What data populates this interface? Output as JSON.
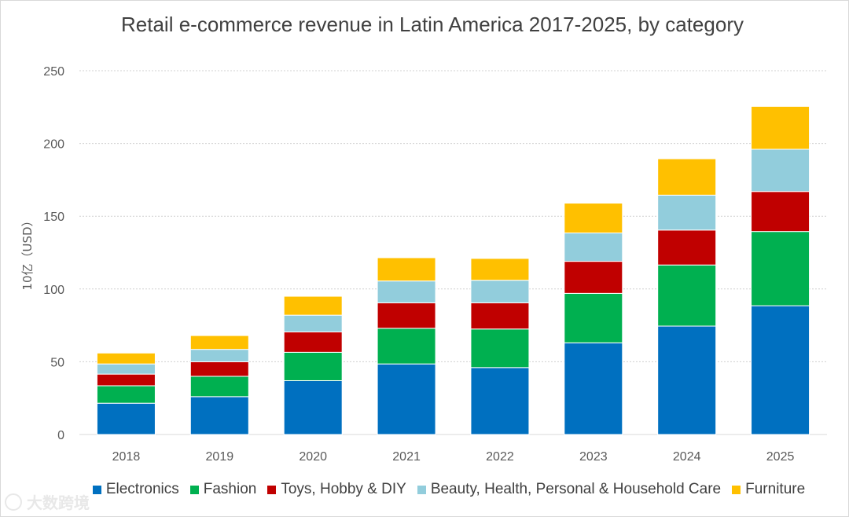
{
  "chart_data": {
    "type": "bar",
    "stacked": true,
    "title": "Retail e-commerce revenue in Latin America 2017-2025, by category",
    "ylabel": "10亿（USD）",
    "xlabel": "",
    "categories": [
      "2018",
      "2019",
      "2020",
      "2021",
      "2022",
      "2023",
      "2024",
      "2025"
    ],
    "ylim": [
      0,
      250
    ],
    "yticks": [
      0,
      50,
      100,
      150,
      200,
      250
    ],
    "grid": true,
    "legend_position": "bottom",
    "series": [
      {
        "name": "Electronics",
        "color": "#0070c0",
        "values": [
          21.5,
          26,
          37,
          48.5,
          46,
          63,
          74.5,
          88.5
        ]
      },
      {
        "name": "Fashion",
        "color": "#00b050",
        "values": [
          12,
          14,
          19.5,
          24.5,
          26.5,
          34,
          42,
          51
        ]
      },
      {
        "name": "Toys, Hobby & DIY",
        "color": "#c00000",
        "values": [
          8,
          10,
          14,
          17.5,
          18,
          22,
          24,
          27.5
        ]
      },
      {
        "name": "Beauty, Health, Personal & Household Care",
        "color": "#92cddc",
        "values": [
          7,
          8.5,
          11.5,
          15,
          15.5,
          19.5,
          24,
          29
        ]
      },
      {
        "name": "Furniture",
        "color": "#ffc000",
        "values": [
          7.5,
          9.5,
          13,
          16,
          15,
          20.5,
          25,
          29.5
        ]
      }
    ]
  },
  "watermark": {
    "text": "大数跨境"
  }
}
